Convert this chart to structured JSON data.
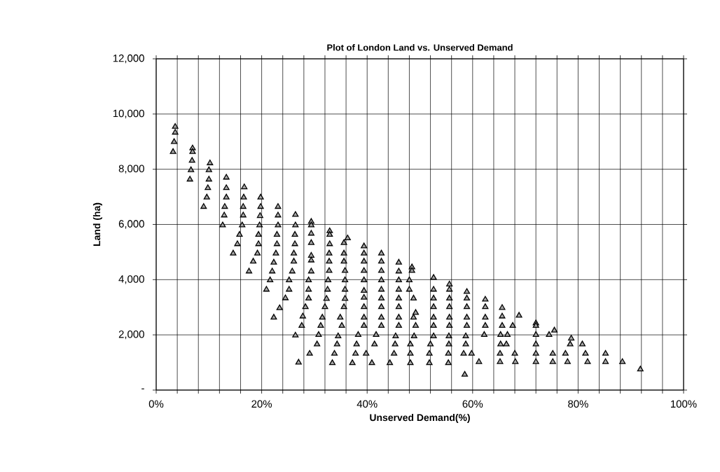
{
  "chart_data": {
    "type": "scatter",
    "title": "Plot of London Land vs. Unserved Demand",
    "xlabel": "Unserved Demand(%)",
    "ylabel": "Land (ha)",
    "color": "#000000",
    "marker": "triangle",
    "grid": true,
    "xlim": [
      0,
      100
    ],
    "ylim": [
      0,
      12000
    ],
    "xticks": [
      {
        "value": 0,
        "label": "0%"
      },
      {
        "value": 4,
        "label": null
      },
      {
        "value": 8,
        "label": null
      },
      {
        "value": 12,
        "label": null
      },
      {
        "value": 16,
        "label": null
      },
      {
        "value": 20,
        "label": "20%"
      },
      {
        "value": 24,
        "label": null
      },
      {
        "value": 28,
        "label": null
      },
      {
        "value": 32,
        "label": null
      },
      {
        "value": 36,
        "label": null
      },
      {
        "value": 40,
        "label": "40%"
      },
      {
        "value": 44,
        "label": null
      },
      {
        "value": 48,
        "label": null
      },
      {
        "value": 52,
        "label": null
      },
      {
        "value": 56,
        "label": null
      },
      {
        "value": 60,
        "label": "60%"
      },
      {
        "value": 64,
        "label": null
      },
      {
        "value": 68,
        "label": null
      },
      {
        "value": 72,
        "label": null
      },
      {
        "value": 76,
        "label": null
      },
      {
        "value": 80,
        "label": "80%"
      },
      {
        "value": 84,
        "label": null
      },
      {
        "value": 88,
        "label": null
      },
      {
        "value": 92,
        "label": null
      },
      {
        "value": 96,
        "label": null
      },
      {
        "value": 100,
        "label": "100%"
      }
    ],
    "yticks": [
      {
        "value": 0,
        "label": "-"
      },
      {
        "value": 2000,
        "label": "2,000"
      },
      {
        "value": 4000,
        "label": "4,000"
      },
      {
        "value": 6000,
        "label": "6,000"
      },
      {
        "value": 8000,
        "label": "8,000"
      },
      {
        "value": 10000,
        "label": "10,000"
      },
      {
        "value": 12000,
        "label": "12,000"
      }
    ],
    "x": [
      3.6,
      3.6,
      3.4,
      3.2,
      6.9,
      6.9,
      6.8,
      6.6,
      6.4,
      10.2,
      10.0,
      10.0,
      9.8,
      9.6,
      9.0,
      13.3,
      13.3,
      13.3,
      13.0,
      12.9,
      12.6,
      16.7,
      16.6,
      16.5,
      16.5,
      16.3,
      15.8,
      15.4,
      14.6,
      19.8,
      19.8,
      19.7,
      19.6,
      19.4,
      19.4,
      19.2,
      18.4,
      17.6,
      23.1,
      23.1,
      23.1,
      22.9,
      22.9,
      22.7,
      22.3,
      22.0,
      21.6,
      20.9,
      26.4,
      26.4,
      26.3,
      26.3,
      26.1,
      26.1,
      25.8,
      25.2,
      25.2,
      24.5,
      23.4,
      22.3,
      29.4,
      29.4,
      29.4,
      29.4,
      29.4,
      29.4,
      29.4,
      28.9,
      28.9,
      28.9,
      28.3,
      27.8,
      27.6,
      26.4,
      27.0,
      29.1,
      32.9,
      32.9,
      32.9,
      32.8,
      32.8,
      32.8,
      32.6,
      32.5,
      32.3,
      32.0,
      31.5,
      31.2,
      30.8,
      30.5,
      36.3,
      35.6,
      35.6,
      35.6,
      35.8,
      35.8,
      35.8,
      35.8,
      35.6,
      34.9,
      35.2,
      34.5,
      34.3,
      33.8,
      33.4,
      39.4,
      39.4,
      39.4,
      39.4,
      39.4,
      39.4,
      39.4,
      39.4,
      39.4,
      39.4,
      38.3,
      38.0,
      37.8,
      37.2,
      39.8,
      42.7,
      42.7,
      42.7,
      42.7,
      42.7,
      42.7,
      42.7,
      42.7,
      42.7,
      41.7,
      41.4,
      40.9,
      46.0,
      46.0,
      46.0,
      46.0,
      46.0,
      46.0,
      46.0,
      46.0,
      45.4,
      45.3,
      45.1,
      44.3,
      48.5,
      48.5,
      48.0,
      48.0,
      48.8,
      49.2,
      48.8,
      49.2,
      48.9,
      48.2,
      48.2,
      48.2,
      52.6,
      52.6,
      52.6,
      52.6,
      52.6,
      52.6,
      52.6,
      52.0,
      51.8,
      51.8,
      55.6,
      55.6,
      55.6,
      55.6,
      55.6,
      55.6,
      55.5,
      55.5,
      55.4,
      55.4,
      58.9,
      58.9,
      58.9,
      58.9,
      58.9,
      58.7,
      58.7,
      58.3,
      59.8,
      58.5,
      61.2,
      62.4,
      62.4,
      62.4,
      62.4,
      62.2,
      65.6,
      65.6,
      65.6,
      65.3,
      65.3,
      65.2,
      65.2,
      66.6,
      66.4,
      67.6,
      68.0,
      68.1,
      68.8,
      72.0,
      72.0,
      72.0,
      72.0,
      72.0,
      72.0,
      74.5,
      75.5,
      75.2,
      75.2,
      77.6,
      78.0,
      78.7,
      78.5,
      80.8,
      81.4,
      81.8,
      85.2,
      85.2,
      88.4,
      91.8
    ],
    "values": [
      9540,
      9330,
      8990,
      8630,
      8760,
      8630,
      8310,
      7970,
      7630,
      8220,
      7970,
      7630,
      7320,
      6980,
      6640,
      7700,
      7320,
      6980,
      6640,
      6330,
      5970,
      7350,
      6980,
      6640,
      6330,
      5970,
      5630,
      5290,
      4950,
      6980,
      6640,
      6310,
      5970,
      5630,
      5290,
      4950,
      4660,
      4300,
      6640,
      6330,
      5970,
      5630,
      5290,
      4950,
      4620,
      4300,
      3980,
      3640,
      6350,
      5970,
      5630,
      5290,
      4950,
      4660,
      4300,
      3980,
      3640,
      3330,
      2970,
      2630,
      6100,
      5970,
      5670,
      5330,
      4870,
      4700,
      4300,
      3980,
      3640,
      3320,
      3010,
      2670,
      2330,
      1980,
      1000,
      1320,
      5760,
      5630,
      5290,
      4950,
      4660,
      4320,
      3980,
      3640,
      3310,
      3010,
      2630,
      2330,
      2000,
      1660,
      5500,
      5330,
      4950,
      4660,
      4320,
      3980,
      3640,
      3310,
      3010,
      2630,
      2330,
      1950,
      1660,
      1320,
      980,
      5210,
      4950,
      4660,
      4320,
      3980,
      3600,
      3350,
      3010,
      2630,
      2330,
      2000,
      1660,
      1320,
      980,
      1320,
      4950,
      4660,
      4320,
      3980,
      3640,
      3320,
      3010,
      2630,
      2330,
      2000,
      1660,
      980,
      4620,
      4300,
      3980,
      3640,
      3320,
      3010,
      2630,
      2330,
      1950,
      1660,
      1320,
      980,
      4450,
      4320,
      3980,
      3640,
      3320,
      2800,
      2630,
      2330,
      1950,
      1660,
      1320,
      980,
      4070,
      3640,
      3320,
      3010,
      2630,
      2330,
      1950,
      1660,
      1320,
      980,
      3830,
      3640,
      3320,
      3010,
      2630,
      2330,
      1950,
      1660,
      1320,
      980,
      3560,
      3320,
      3010,
      2630,
      2330,
      1950,
      1660,
      1320,
      1320,
      560,
      1020,
      3280,
      3010,
      2630,
      2330,
      2000,
      2980,
      2670,
      2330,
      2000,
      1660,
      1320,
      1020,
      2000,
      1660,
      2330,
      1320,
      1020,
      2700,
      2420,
      2330,
      2000,
      1660,
      1320,
      1020,
      2000,
      2160,
      1320,
      1020,
      1320,
      1020,
      1870,
      1660,
      1660,
      1320,
      1020,
      1320,
      1020,
      1020,
      750
    ]
  }
}
